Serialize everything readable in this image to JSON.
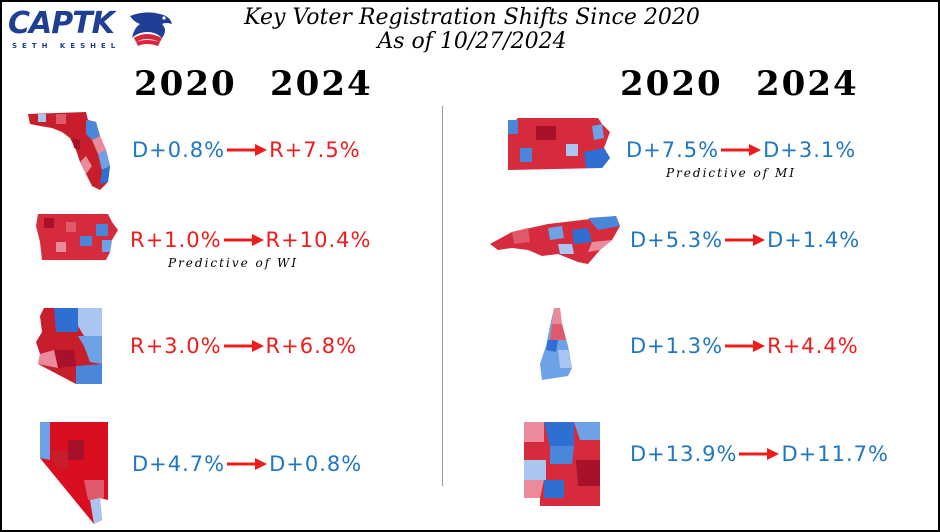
{
  "title_line1": "Key Voter Registration Shifts Since 2020",
  "title_line2": "As of 10/27/2024",
  "logo": {
    "main": "CAPTK",
    "sub": "SETH KESHEL"
  },
  "colors": {
    "dem": "#1f77c4",
    "rep": "#ee1c1c",
    "arrow": "#ee1c1c"
  },
  "left": {
    "year_from": "2020",
    "year_to": "2024",
    "rows": [
      {
        "map": "florida-map",
        "from": "D+0.8%",
        "to": "R+7.5%",
        "from_party": "dem",
        "to_party": "rep",
        "note": ""
      },
      {
        "map": "iowa-map",
        "from": "R+1.0%",
        "to": "R+10.4%",
        "from_party": "rep",
        "to_party": "rep",
        "note": "Predictive of WI"
      },
      {
        "map": "arizona-map",
        "from": "R+3.0%",
        "to": "R+6.8%",
        "from_party": "rep",
        "to_party": "rep",
        "note": ""
      },
      {
        "map": "nevada-map",
        "from": "D+4.7%",
        "to": "D+0.8%",
        "from_party": "dem",
        "to_party": "dem",
        "note": ""
      }
    ]
  },
  "right": {
    "year_from": "2020",
    "year_to": "2024",
    "rows": [
      {
        "map": "pennsylvania-map",
        "from": "D+7.5%",
        "to": "D+3.1%",
        "from_party": "dem",
        "to_party": "dem",
        "note": "Predictive of MI"
      },
      {
        "map": "north-carolina-map",
        "from": "D+5.3%",
        "to": "D+1.4%",
        "from_party": "dem",
        "to_party": "dem",
        "note": ""
      },
      {
        "map": "new-hampshire-map",
        "from": "D+1.3%",
        "to": "R+4.4%",
        "from_party": "dem",
        "to_party": "rep",
        "note": ""
      },
      {
        "map": "new-mexico-map",
        "from": "D+13.9%",
        "to": "D+11.7%",
        "from_party": "dem",
        "to_party": "dem",
        "note": ""
      }
    ]
  }
}
